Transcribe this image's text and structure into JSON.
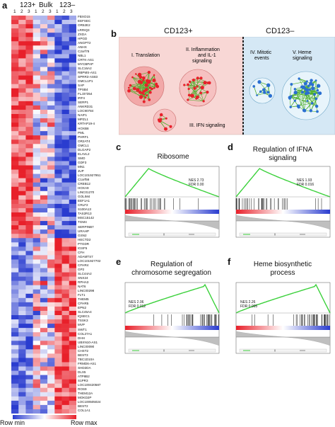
{
  "panels": {
    "a": "a",
    "b": "b",
    "c": "c",
    "d": "d",
    "e": "e",
    "f": "f"
  },
  "heatmap": {
    "group_labels": [
      "123+",
      "Bulk",
      "123–"
    ],
    "replicate_labels": [
      "1",
      "2",
      "3",
      "1",
      "2",
      "3",
      "1",
      "2",
      "3"
    ],
    "genes": [
      "FBXO15",
      "EEFSEC",
      "OR52E2",
      "LRRIQ3",
      "ZXDA",
      "HPGD",
      "ANGPT2",
      "ANHX",
      "C2orf78",
      "NBL1",
      "CRTK-AS1",
      "MYCBPAP",
      "SLC16A2",
      "RBPMS-AS1",
      "SPRR3-AS83",
      "GMCL1P1",
      "SAP",
      "TPSB4",
      "FLJ37354",
      "IRF4",
      "SERP1",
      "ANKRD31",
      "LOC90784",
      "NAIF1",
      "MPZL1",
      "KRTAP19-4",
      "HOXB8",
      "PML",
      "PHRF1",
      "OR2AT4",
      "GMCL1",
      "DLGAP2",
      "ELAVL2",
      "SMO",
      "GDF3",
      "MN1",
      "JUP",
      "LOC101927951",
      "C1orf56",
      "CREB12",
      "HOXA9",
      "LINC01270",
      "GOLIM4",
      "EEF1A1",
      "CRLF2",
      "S100A13",
      "TAS2R13",
      "MSC15142",
      "TGM4",
      "SERPINB7",
      "URAHP",
      "GSN2",
      "HECTD2",
      "PTGDR",
      "IGSF5",
      "CFH",
      "ADAMTS7",
      "LOC101927702",
      "CFHR4",
      "GP2",
      "SLC44A2",
      "SNX24",
      "RPHA3",
      "NAT6",
      "LINC00298",
      "FLT1",
      "THEM5",
      "CFHR5",
      "EPN2",
      "SLC45A4",
      "IQSEC1",
      "TSSK3",
      "MVP",
      "SWT1",
      "COL27A1",
      "DHH",
      "UBXN10-AS1",
      "LINC00090",
      "CHST2",
      "BEST3",
      "TBC1D10A",
      "FRMD6-AS1",
      "SHD2DA",
      "DLX5",
      "ATP8B2",
      "S1PR3",
      "LOC100420587",
      "ROS9",
      "THEM12A",
      "MOKD2P",
      "LOC100505024",
      "BEST2",
      "COL1A1"
    ],
    "legend": {
      "min_label": "Row min",
      "max_label": "Row max"
    }
  },
  "network": {
    "left_header": "CD123+",
    "right_header": "CD123–",
    "modules": [
      "I. Translation",
      "II. Inflammation and IL-1 signaling",
      "III. IFN signaling",
      "IV. Mitotic events",
      "V. Heme signaling"
    ],
    "module_lines": {
      "m1": [
        "I. Translation"
      ],
      "m2": [
        "II. Inflammation",
        "and IL-1",
        "signaling"
      ],
      "m3": [
        "III. IFN signaling"
      ],
      "m4": [
        "IV. Mitotic",
        "events"
      ],
      "m5": [
        "V. Heme",
        "signaling"
      ]
    }
  },
  "gsea": [
    {
      "id": "c",
      "title_lines": [
        "Ribosome"
      ],
      "nes": "NES 2.73",
      "fdr": "FDR 0.00"
    },
    {
      "id": "d",
      "title_lines": [
        "Regulation of IFNA",
        "signaling"
      ],
      "nes": "NES 1.93",
      "fdr": "FDR 0.016"
    },
    {
      "id": "e",
      "title_lines": [
        "Regulation of",
        "chromosome segregation"
      ],
      "nes": "NES 2.06",
      "fdr": "FDR 0.012"
    },
    {
      "id": "f",
      "title_lines": [
        "Heme biosynthetic",
        "process"
      ],
      "nes": "NES 2.26",
      "fdr": "FDR 0.005"
    }
  ],
  "colors": {
    "red": "#e8202a",
    "blue": "#2a3ccf",
    "green": "#3cd13c",
    "pink_bg": "#f8d7d5",
    "blue_bg": "#d5e8f5"
  }
}
